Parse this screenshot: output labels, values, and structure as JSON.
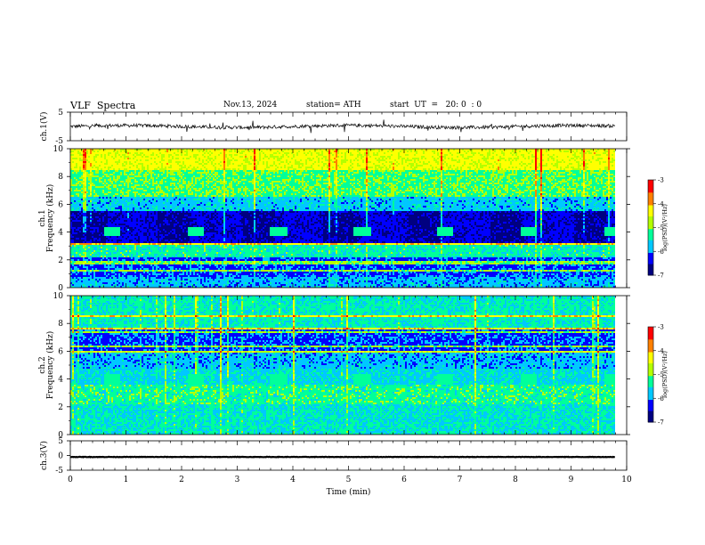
{
  "header": {
    "title": "VLF  Spectra",
    "date": "Nov.13, 2024",
    "station": "station= ATH",
    "start": "start  UT  =   20: 0  : 0"
  },
  "colors": {
    "colormap": [
      "#000080",
      "#0000ff",
      "#00c8ff",
      "#00ff9a",
      "#b4ff00",
      "#ffff00",
      "#ff8000",
      "#ff0000",
      "#ffffff"
    ],
    "trace": "#000000"
  },
  "chart_data": [
    {
      "type": "line",
      "name": "ch1-waveform",
      "ylabel": "ch.1(V)",
      "ylim": [
        -5,
        5
      ],
      "yticks": [
        "5",
        "-5"
      ],
      "xlim": [
        0,
        10
      ],
      "x_span": [
        0,
        9.8
      ],
      "baseline": 0,
      "description_values": {
        "typical_amplitude": 0.6,
        "max_spike": 2.5
      }
    },
    {
      "type": "heatmap",
      "name": "ch1-spectrogram",
      "ylabel_line1": "ch.1",
      "ylabel_line2": "Frequency (kHz)",
      "ylim": [
        0,
        10
      ],
      "yticks": [
        "0",
        "2",
        "4",
        "6",
        "8",
        "10"
      ],
      "xlim": [
        0,
        10
      ],
      "x_span": [
        0,
        9.8
      ],
      "colorbar": {
        "label": "log(PSD)(V²/Hz)",
        "range": [
          -7,
          -3
        ],
        "ticks": [
          "-3",
          "-4",
          "-5",
          "-6",
          "-7"
        ]
      },
      "periodic_blocks": {
        "start_min": [
          0.6,
          2.1,
          3.6,
          5.1,
          6.6,
          8.1,
          9.6
        ],
        "duration_min": 0.3,
        "freq_khz": [
          3.7,
          4.4
        ]
      }
    },
    {
      "type": "heatmap",
      "name": "ch2-spectrogram",
      "ylabel_line1": "ch.2",
      "ylabel_line2": "Frequency (kHz)",
      "ylim": [
        0,
        10
      ],
      "yticks": [
        "0",
        "2",
        "4",
        "6",
        "8",
        "10"
      ],
      "xlim": [
        0,
        10
      ],
      "x_span": [
        0,
        9.8
      ],
      "colorbar": {
        "label": "log(PSD)(V²/Hz)",
        "range": [
          -7,
          -3
        ],
        "ticks": [
          "-3",
          "-4",
          "-5",
          "-6",
          "-7"
        ]
      },
      "periodic_blocks": {
        "start_min": [
          0.6,
          2.1,
          3.6,
          5.1,
          6.6,
          8.1,
          9.6
        ],
        "duration_min": 0.3,
        "freq_khz": [
          3.6,
          4.3
        ]
      }
    },
    {
      "type": "line",
      "name": "ch3-waveform",
      "ylabel": "ch.3(V)",
      "ylim": [
        -5,
        5
      ],
      "yticks": [
        "5",
        "0",
        "-5"
      ],
      "xlim": [
        0,
        10
      ],
      "x_span": [
        0,
        9.8
      ],
      "baseline": -0.5,
      "xlabel": "Time (min)",
      "xticks": [
        "0",
        "1",
        "2",
        "3",
        "4",
        "5",
        "6",
        "7",
        "8",
        "9",
        "10"
      ]
    }
  ]
}
